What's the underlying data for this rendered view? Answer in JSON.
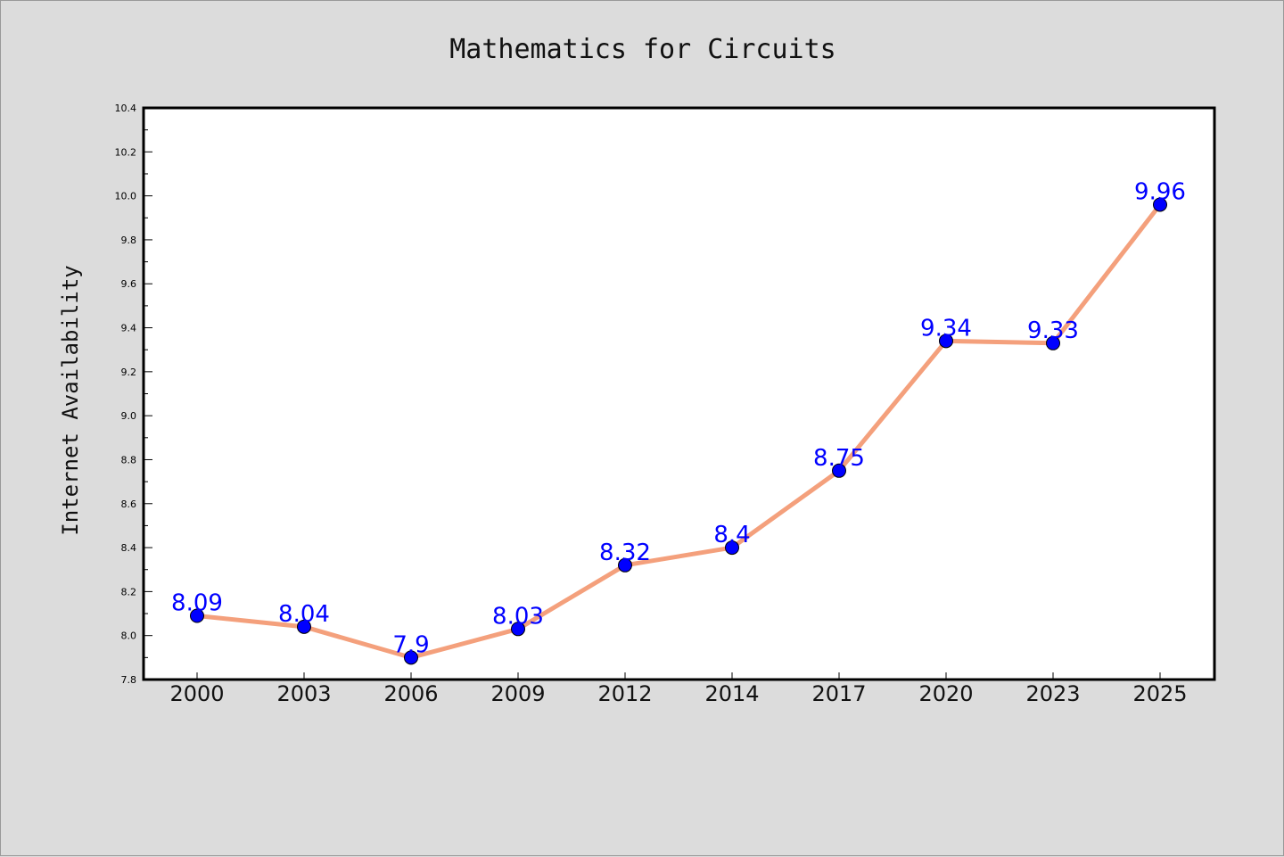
{
  "chart_data": {
    "type": "line",
    "title": "Mathematics for Circuits",
    "xlabel": "",
    "ylabel": "Internet Availability",
    "categories": [
      "2000",
      "2003",
      "2006",
      "2009",
      "2012",
      "2014",
      "2017",
      "2020",
      "2023",
      "2025"
    ],
    "series": [
      {
        "values": [
          8.09,
          8.04,
          7.9,
          8.03,
          8.32,
          8.4,
          8.75,
          9.34,
          9.33,
          9.96
        ],
        "labels": [
          "8.09",
          "8.04",
          "7.9",
          "8.03",
          "8.32",
          "8.4",
          "8.75",
          "9.34",
          "9.33",
          "9.96"
        ],
        "line_color": "#f4a07c",
        "marker_color": "#0000ff",
        "label_color": "#0000ff"
      }
    ],
    "ylim": [
      7.8,
      10.4
    ],
    "yticks": [
      "7.8",
      "8.0",
      "8.2",
      "8.4",
      "8.6",
      "8.8",
      "9.0",
      "9.2",
      "9.4",
      "9.6",
      "9.8",
      "10.0",
      "10.2",
      "10.4"
    ],
    "grid": false,
    "legend": "none",
    "background_color": "#dcdcdc",
    "plot_background_color": "#ffffff"
  }
}
